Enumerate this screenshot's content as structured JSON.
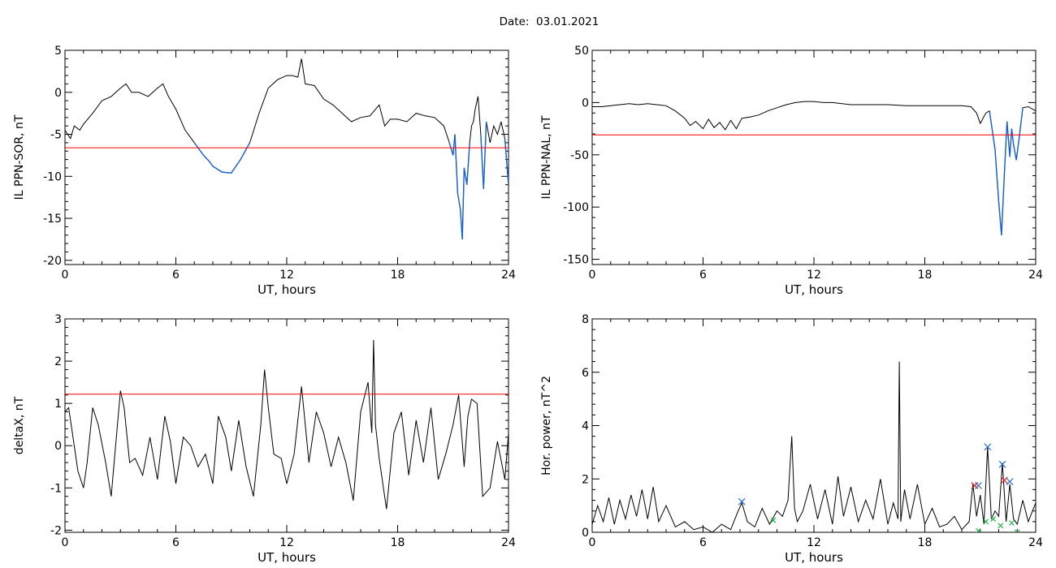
{
  "title": "Date:  03.01.2021",
  "colors": {
    "trace": "#000000",
    "threshold": "#ff0000",
    "highlight": "#1560d4",
    "marker_blue": "#2a6fdb",
    "marker_red": "#e02020",
    "marker_green": "#21b24a"
  },
  "chart_data": [
    {
      "id": "sor",
      "type": "line",
      "ylabel": "IL PPN-SOR, nT",
      "xlabel": "UT, hours",
      "xlim": [
        0,
        24
      ],
      "ylim": [
        -20.5,
        5
      ],
      "xticks": [
        0,
        6,
        12,
        18,
        24
      ],
      "yticks": [
        -20,
        -15,
        -10,
        -5,
        0,
        5
      ],
      "threshold": -6.6,
      "highlight_below_threshold": true,
      "x": [
        0,
        0.3,
        0.5,
        0.8,
        1.0,
        1.5,
        2.0,
        2.5,
        3.0,
        3.3,
        3.6,
        4.0,
        4.5,
        5.0,
        5.3,
        5.6,
        6.0,
        6.5,
        7.0,
        7.5,
        7.8,
        8.0,
        8.5,
        9.0,
        9.5,
        10.0,
        10.5,
        11.0,
        11.5,
        12.0,
        12.3,
        12.6,
        12.8,
        13.0,
        13.5,
        14.0,
        14.5,
        15.0,
        15.5,
        16.0,
        16.5,
        17.0,
        17.3,
        17.6,
        18.0,
        18.5,
        19.0,
        19.5,
        20.0,
        20.5,
        20.8,
        21.0,
        21.1,
        21.25,
        21.4,
        21.5,
        21.6,
        21.75,
        21.9,
        22.0,
        22.1,
        22.2,
        22.35,
        22.5,
        22.65,
        22.8,
        23.0,
        23.2,
        23.4,
        23.6,
        23.8,
        24.0
      ],
      "y": [
        -4.5,
        -5.5,
        -4.0,
        -4.5,
        -3.8,
        -2.5,
        -1.0,
        -0.5,
        0.5,
        1.0,
        0.0,
        0.0,
        -0.5,
        0.5,
        1.0,
        -0.5,
        -2.0,
        -4.5,
        -6.0,
        -7.5,
        -8.2,
        -8.8,
        -9.5,
        -9.6,
        -8.0,
        -6.0,
        -2.5,
        0.5,
        1.5,
        2.0,
        2.0,
        1.8,
        4.0,
        1.0,
        0.8,
        -0.8,
        -1.5,
        -2.5,
        -3.5,
        -3.0,
        -2.8,
        -1.5,
        -4.0,
        -3.2,
        -3.2,
        -3.5,
        -2.5,
        -2.8,
        -3.0,
        -4.0,
        -6.0,
        -7.5,
        -5.0,
        -12.0,
        -14.0,
        -17.5,
        -9.0,
        -11.0,
        -6.0,
        -4.0,
        -3.5,
        -2.0,
        -0.5,
        -5.0,
        -11.5,
        -3.5,
        -6.0,
        -4.0,
        -5.0,
        -3.5,
        -5.5,
        -11.0
      ]
    },
    {
      "id": "nal",
      "type": "line",
      "ylabel": "IL PPN-NAL, nT",
      "xlabel": "UT, hours",
      "xlim": [
        0,
        24
      ],
      "ylim": [
        -155,
        50
      ],
      "xticks": [
        0,
        6,
        12,
        18,
        24
      ],
      "yticks": [
        -150,
        -100,
        -50,
        0,
        50
      ],
      "threshold": -31,
      "highlight_below_threshold": true,
      "x": [
        0,
        0.5,
        1.0,
        1.5,
        2.0,
        2.5,
        3.0,
        3.5,
        4.0,
        4.5,
        5.0,
        5.3,
        5.6,
        6.0,
        6.3,
        6.6,
        6.9,
        7.2,
        7.5,
        7.8,
        8.1,
        8.5,
        9.0,
        9.5,
        10.0,
        10.5,
        11.0,
        11.5,
        12.0,
        12.5,
        13.0,
        14.0,
        15.0,
        16.0,
        17.0,
        18.0,
        19.0,
        20.0,
        20.5,
        20.8,
        21.0,
        21.3,
        21.5,
        21.8,
        22.0,
        22.15,
        22.3,
        22.45,
        22.6,
        22.7,
        22.8,
        22.95,
        23.1,
        23.3,
        23.6,
        24.0
      ],
      "y": [
        -4,
        -4,
        -3,
        -2,
        -1,
        -2,
        -1,
        -2,
        -3,
        -8,
        -15,
        -22,
        -18,
        -25,
        -16,
        -24,
        -19,
        -26,
        -17,
        -25,
        -15,
        -14,
        -12,
        -8,
        -5,
        -2,
        0,
        1,
        1,
        0,
        0,
        -2,
        -2,
        -2,
        -3,
        -3,
        -3,
        -3,
        -4,
        -10,
        -20,
        -10,
        -8,
        -45,
        -95,
        -127,
        -70,
        -18,
        -52,
        -25,
        -40,
        -55,
        -35,
        -5,
        -4,
        -8
      ]
    },
    {
      "id": "deltax",
      "type": "line",
      "ylabel": "deltaX, nT",
      "xlabel": "UT, hours",
      "xlim": [
        0,
        24
      ],
      "ylim": [
        -2.05,
        3
      ],
      "xticks": [
        0,
        6,
        12,
        18,
        24
      ],
      "yticks": [
        -2,
        -1,
        0,
        1,
        2,
        3
      ],
      "threshold": 1.22,
      "highlight_below_threshold": false,
      "x": [
        0,
        0.2,
        0.4,
        0.7,
        1.0,
        1.2,
        1.5,
        1.8,
        2.2,
        2.5,
        2.8,
        3.0,
        3.2,
        3.5,
        3.8,
        4.2,
        4.6,
        5.0,
        5.4,
        5.7,
        6.0,
        6.4,
        6.8,
        7.2,
        7.6,
        8.0,
        8.3,
        8.7,
        9.0,
        9.4,
        9.8,
        10.2,
        10.6,
        10.8,
        11.0,
        11.3,
        11.7,
        12.0,
        12.4,
        12.8,
        13.0,
        13.2,
        13.6,
        14.0,
        14.4,
        14.8,
        15.2,
        15.6,
        16.0,
        16.4,
        16.6,
        16.7,
        16.8,
        17.0,
        17.4,
        17.8,
        18.2,
        18.6,
        19.0,
        19.4,
        19.8,
        20.2,
        20.6,
        21.0,
        21.3,
        21.6,
        21.8,
        22.0,
        22.3,
        22.6,
        23.0,
        23.4,
        23.8,
        24.0
      ],
      "y": [
        0.8,
        0.9,
        0.3,
        -0.6,
        -1.0,
        -0.4,
        0.9,
        0.5,
        -0.4,
        -1.2,
        0.3,
        1.3,
        0.9,
        -0.4,
        -0.3,
        -0.7,
        0.2,
        -0.8,
        0.7,
        0.1,
        -0.9,
        0.2,
        0.0,
        -0.5,
        -0.2,
        -0.9,
        0.7,
        0.2,
        -0.6,
        0.6,
        -0.5,
        -1.2,
        0.5,
        1.8,
        0.9,
        -0.2,
        -0.3,
        -0.9,
        -0.2,
        1.4,
        0.5,
        -0.4,
        0.8,
        0.3,
        -0.5,
        0.2,
        -0.4,
        -1.3,
        0.8,
        1.5,
        0.3,
        2.5,
        0.5,
        -0.3,
        -1.5,
        0.3,
        0.8,
        -0.7,
        0.6,
        -0.4,
        0.9,
        -0.8,
        -0.2,
        0.5,
        1.2,
        -0.5,
        0.7,
        1.1,
        1.0,
        -1.2,
        -1.0,
        0.1,
        -0.8,
        0.3
      ]
    },
    {
      "id": "power",
      "type": "line",
      "ylabel": "Hor. power, nT^2",
      "xlabel": "UT, hours",
      "xlim": [
        0,
        24
      ],
      "ylim": [
        0,
        8
      ],
      "xticks": [
        0,
        6,
        12,
        18,
        24
      ],
      "yticks": [
        0,
        2,
        4,
        6,
        8
      ],
      "x": [
        0,
        0.3,
        0.6,
        0.9,
        1.2,
        1.5,
        1.8,
        2.1,
        2.4,
        2.7,
        3.0,
        3.3,
        3.6,
        4.0,
        4.5,
        5.0,
        5.5,
        6.0,
        6.5,
        7.0,
        7.5,
        7.9,
        8.1,
        8.4,
        8.8,
        9.2,
        9.6,
        10.0,
        10.3,
        10.6,
        10.8,
        10.95,
        11.1,
        11.4,
        11.8,
        12.2,
        12.6,
        13.0,
        13.3,
        13.6,
        14.0,
        14.4,
        14.8,
        15.2,
        15.6,
        16.0,
        16.3,
        16.55,
        16.62,
        16.7,
        16.9,
        17.2,
        17.6,
        18.0,
        18.4,
        18.8,
        19.2,
        19.6,
        20.0,
        20.4,
        20.6,
        20.8,
        21.0,
        21.2,
        21.4,
        21.6,
        21.8,
        22.0,
        22.2,
        22.4,
        22.6,
        22.8,
        23.0,
        23.3,
        23.6,
        24.0
      ],
      "y": [
        0.3,
        1.0,
        0.4,
        1.3,
        0.3,
        1.2,
        0.5,
        1.4,
        0.6,
        1.6,
        0.5,
        1.7,
        0.4,
        1.0,
        0.2,
        0.4,
        0.1,
        0.2,
        0.0,
        0.3,
        0.1,
        0.8,
        1.1,
        0.4,
        0.2,
        0.9,
        0.3,
        0.8,
        0.6,
        1.2,
        3.6,
        0.9,
        0.4,
        0.8,
        1.8,
        0.5,
        1.6,
        0.3,
        2.1,
        0.6,
        1.7,
        0.4,
        1.2,
        0.5,
        2.0,
        0.3,
        1.1,
        0.5,
        6.4,
        0.4,
        1.6,
        0.5,
        1.8,
        0.3,
        0.9,
        0.2,
        0.3,
        0.6,
        0.1,
        0.4,
        1.8,
        0.6,
        1.4,
        0.3,
        3.2,
        0.5,
        0.8,
        0.6,
        2.6,
        0.4,
        1.8,
        0.5,
        0.3,
        1.2,
        0.4,
        1.1
      ],
      "markers": [
        {
          "color": "blue",
          "x": [
            8.1,
            20.9,
            21.4,
            22.2,
            22.6
          ],
          "y": [
            1.15,
            1.75,
            3.2,
            2.55,
            1.9
          ]
        },
        {
          "color": "red",
          "x": [
            20.7,
            22.3
          ],
          "y": [
            1.75,
            1.95
          ]
        },
        {
          "color": "green",
          "x": [
            9.8,
            20.9,
            21.3,
            21.7,
            22.1,
            22.7,
            23.0
          ],
          "y": [
            0.45,
            0.05,
            0.4,
            0.5,
            0.25,
            0.35,
            0.0
          ]
        }
      ]
    }
  ]
}
